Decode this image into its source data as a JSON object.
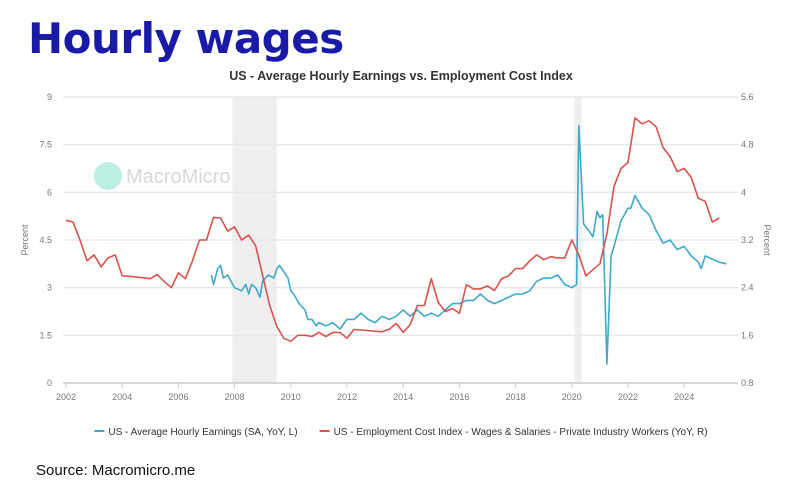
{
  "headline": "Hourly wages",
  "source": "Source: Macromicro.me",
  "watermark": "MacroMicro",
  "chart_data": {
    "type": "line",
    "title": "US - Average Hourly Earnings vs. Employment Cost Index",
    "xlim": [
      2002,
      2025.7
    ],
    "x_ticks": [
      "2002",
      "2004",
      "2006",
      "2008",
      "2010",
      "2012",
      "2014",
      "2016",
      "2018",
      "2020",
      "2022",
      "2024"
    ],
    "ylabel_left": "Percent",
    "ylabel_right": "Percent",
    "ylim_left": [
      0,
      9
    ],
    "ylim_right": [
      0.8,
      5.6
    ],
    "y_ticks_left": [
      "0",
      "1.5",
      "3",
      "4.5",
      "6",
      "7.5",
      "9"
    ],
    "y_ticks_right": [
      "0.8",
      "1.6",
      "2.4",
      "3.2",
      "4",
      "4.8",
      "5.6"
    ],
    "grid": true,
    "legend_position": "bottom",
    "recessions": [
      [
        2007.92,
        2009.5
      ],
      [
        2020.1,
        2020.35
      ]
    ],
    "colors": {
      "ahe": "#3fa9cc",
      "eci": "#d9534a",
      "recession": "#efefef"
    },
    "series": [
      {
        "name": "US - Average Hourly Earnings (SA, YoY, L)",
        "axis": "left",
        "x": [
          2007.17,
          2007.25,
          2007.4,
          2007.5,
          2007.6,
          2007.75,
          2008.0,
          2008.25,
          2008.4,
          2008.5,
          2008.6,
          2008.75,
          2008.9,
          2009.0,
          2009.2,
          2009.4,
          2009.5,
          2009.6,
          2009.75,
          2009.9,
          2010.0,
          2010.1,
          2010.3,
          2010.5,
          2010.6,
          2010.75,
          2010.9,
          2011.0,
          2011.25,
          2011.5,
          2011.75,
          2012.0,
          2012.25,
          2012.5,
          2012.75,
          2013.0,
          2013.25,
          2013.5,
          2013.75,
          2014.0,
          2014.25,
          2014.5,
          2014.75,
          2015.0,
          2015.25,
          2015.5,
          2015.75,
          2016.0,
          2016.25,
          2016.5,
          2016.75,
          2017.0,
          2017.25,
          2017.5,
          2017.75,
          2018.0,
          2018.25,
          2018.5,
          2018.75,
          2019.0,
          2019.25,
          2019.5,
          2019.75,
          2020.0,
          2020.17,
          2020.25,
          2020.33,
          2020.42,
          2020.6,
          2020.75,
          2020.9,
          2021.0,
          2021.1,
          2021.25,
          2021.4,
          2021.5,
          2021.75,
          2022.0,
          2022.1,
          2022.25,
          2022.5,
          2022.75,
          2023.0,
          2023.25,
          2023.5,
          2023.75,
          2024.0,
          2024.25,
          2024.5,
          2024.6,
          2024.75,
          2025.0,
          2025.25,
          2025.5
        ],
        "values": [
          3.4,
          3.1,
          3.6,
          3.7,
          3.3,
          3.4,
          3.0,
          2.9,
          3.1,
          2.8,
          3.1,
          3.0,
          2.7,
          3.2,
          3.4,
          3.3,
          3.6,
          3.7,
          3.5,
          3.3,
          2.9,
          2.8,
          2.5,
          2.3,
          2.0,
          2.0,
          1.8,
          1.9,
          1.8,
          1.9,
          1.7,
          2.0,
          2.0,
          2.2,
          2.0,
          1.9,
          2.1,
          2.0,
          2.1,
          2.3,
          2.1,
          2.3,
          2.1,
          2.2,
          2.1,
          2.3,
          2.5,
          2.5,
          2.6,
          2.6,
          2.8,
          2.6,
          2.5,
          2.6,
          2.7,
          2.8,
          2.8,
          2.9,
          3.2,
          3.3,
          3.3,
          3.4,
          3.1,
          3.0,
          3.1,
          8.1,
          6.6,
          5.0,
          4.8,
          4.6,
          5.4,
          5.2,
          5.3,
          0.6,
          4.0,
          4.3,
          5.1,
          5.5,
          5.5,
          5.9,
          5.5,
          5.3,
          4.8,
          4.4,
          4.5,
          4.2,
          4.3,
          4.0,
          3.8,
          3.6,
          4.0,
          3.9,
          3.8,
          3.75
        ]
      },
      {
        "name": "US - Employment Cost Index - Wages & Salaries - Private Industry Workers (YoY, R)",
        "axis": "right",
        "x": [
          2002.0,
          2002.25,
          2002.5,
          2002.75,
          2003.0,
          2003.25,
          2003.5,
          2003.75,
          2004.0,
          2004.5,
          2005.0,
          2005.25,
          2005.5,
          2005.75,
          2006.0,
          2006.25,
          2006.5,
          2006.75,
          2007.0,
          2007.25,
          2007.5,
          2007.75,
          2008.0,
          2008.25,
          2008.5,
          2008.75,
          2009.0,
          2009.25,
          2009.5,
          2009.75,
          2010.0,
          2010.25,
          2010.5,
          2010.75,
          2011.0,
          2011.25,
          2011.5,
          2011.75,
          2012.0,
          2012.25,
          2012.5,
          2013.25,
          2013.5,
          2013.75,
          2014.0,
          2014.25,
          2014.5,
          2014.75,
          2015.0,
          2015.25,
          2015.5,
          2015.75,
          2016.0,
          2016.25,
          2016.5,
          2016.75,
          2017.0,
          2017.25,
          2017.5,
          2017.75,
          2018.0,
          2018.25,
          2018.5,
          2018.75,
          2019.0,
          2019.25,
          2019.5,
          2019.75,
          2020.0,
          2020.25,
          2020.5,
          2020.75,
          2021.0,
          2021.25,
          2021.5,
          2021.75,
          2022.0,
          2022.25,
          2022.5,
          2022.75,
          2023.0,
          2023.25,
          2023.5,
          2023.75,
          2024.0,
          2024.25,
          2024.5,
          2024.75,
          2025.0,
          2025.25
        ],
        "values": [
          3.53,
          3.5,
          3.2,
          2.85,
          2.95,
          2.75,
          2.9,
          2.95,
          2.6,
          2.58,
          2.55,
          2.62,
          2.5,
          2.4,
          2.65,
          2.55,
          2.85,
          3.2,
          3.2,
          3.58,
          3.57,
          3.35,
          3.42,
          3.2,
          3.28,
          3.1,
          2.6,
          2.1,
          1.75,
          1.55,
          1.5,
          1.6,
          1.6,
          1.58,
          1.65,
          1.58,
          1.65,
          1.65,
          1.55,
          1.7,
          1.69,
          1.66,
          1.7,
          1.8,
          1.65,
          1.78,
          2.1,
          2.1,
          2.55,
          2.15,
          2.0,
          2.05,
          1.97,
          2.45,
          2.38,
          2.38,
          2.43,
          2.35,
          2.55,
          2.6,
          2.72,
          2.72,
          2.85,
          2.95,
          2.87,
          2.92,
          2.9,
          2.9,
          3.2,
          2.95,
          2.6,
          2.7,
          2.8,
          3.3,
          4.1,
          4.4,
          4.5,
          5.25,
          5.15,
          5.2,
          5.1,
          4.75,
          4.6,
          4.35,
          4.4,
          4.25,
          3.9,
          3.85,
          3.5,
          3.57
        ]
      }
    ]
  }
}
